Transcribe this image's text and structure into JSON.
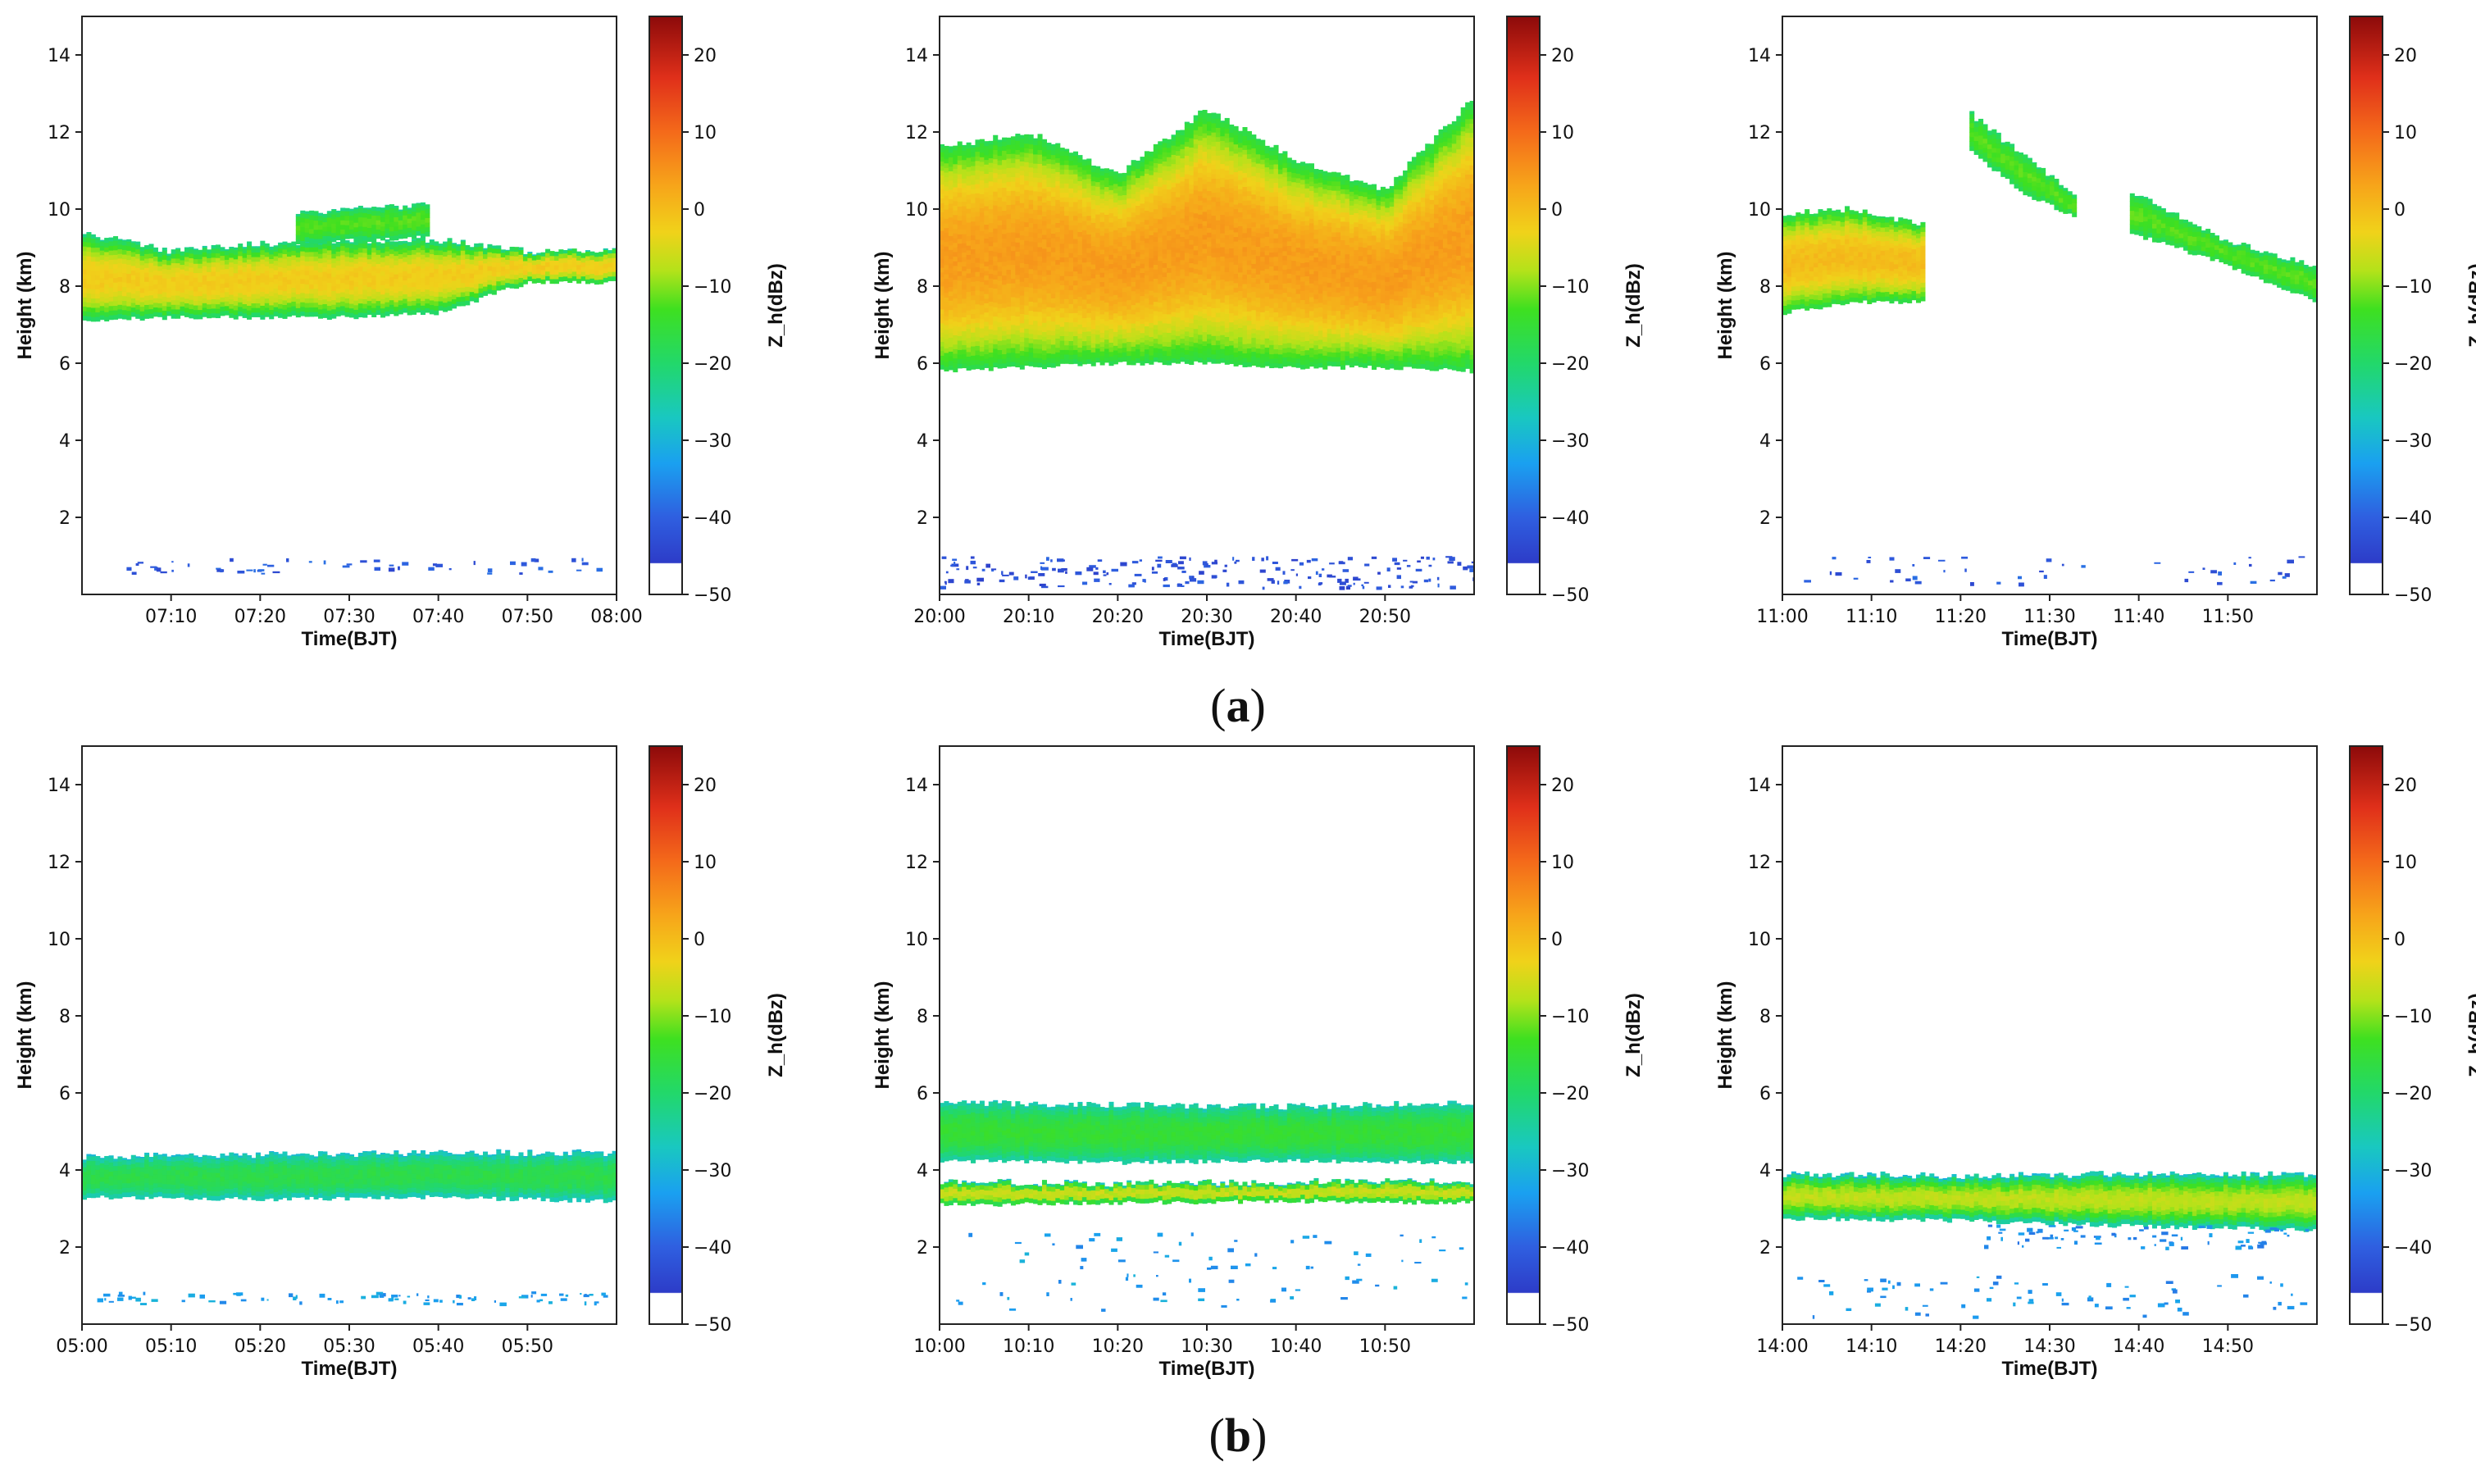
{
  "panel_labels": [
    "(a)",
    "(b)"
  ],
  "colorbar": {
    "label": "Z_h(dBz)",
    "range": [
      -50,
      25
    ],
    "ticks": [
      20,
      10,
      0,
      -10,
      -20,
      -30,
      -40,
      -50
    ],
    "stops": [
      {
        "v": -50,
        "c": "#ffffff"
      },
      {
        "v": -46,
        "c": "#ffffff"
      },
      {
        "v": -45.9,
        "c": "#2d3cc8"
      },
      {
        "v": -40,
        "c": "#2f5fe0"
      },
      {
        "v": -33,
        "c": "#1aa0f0"
      },
      {
        "v": -27,
        "c": "#19c8c0"
      },
      {
        "v": -20,
        "c": "#22d86a"
      },
      {
        "v": -13,
        "c": "#3ee020"
      },
      {
        "v": -8,
        "c": "#b4e21a"
      },
      {
        "v": -3,
        "c": "#f0d21a"
      },
      {
        "v": 3,
        "c": "#f7a51a"
      },
      {
        "v": 10,
        "c": "#f46a1a"
      },
      {
        "v": 17,
        "c": "#e0301a"
      },
      {
        "v": 25,
        "c": "#8c0a0a"
      }
    ]
  },
  "chart_data": [
    {
      "type": "heatmap",
      "panel": "a",
      "row": 0,
      "col": 0,
      "xlabel": "Time(BJT)",
      "ylabel": "Height (km)",
      "cbar_label": "Z_h(dBz)",
      "xlim": [
        0,
        60
      ],
      "ylim": [
        0,
        15
      ],
      "xticks": [
        10,
        20,
        30,
        40,
        50,
        60
      ],
      "xtick_labels": [
        "07:10",
        "07:20",
        "07:30",
        "07:40",
        "07:50",
        "08:00"
      ],
      "yticks": [
        2,
        4,
        6,
        8,
        10,
        12,
        14
      ],
      "layers": [
        {
          "x0": 0,
          "x1": 60,
          "bottom": [
            7.1,
            7.2,
            7.2,
            7.2,
            7.3,
            8.1,
            8.1
          ],
          "top": [
            9.4,
            8.9,
            9.1,
            9.2,
            9.2,
            8.9,
            8.9
          ],
          "peak": -2,
          "edge": -22
        },
        {
          "x0": 24,
          "x1": 39,
          "bottom": [
            9.1,
            9.3
          ],
          "top": [
            9.9,
            10.1
          ],
          "peak": -12,
          "edge": -22
        }
      ],
      "speckle": [
        {
          "x0": 1,
          "x1": 58,
          "y0": 0.55,
          "y1": 0.95,
          "count": 55,
          "dbz": -41
        }
      ]
    },
    {
      "type": "heatmap",
      "panel": "a",
      "row": 0,
      "col": 1,
      "xlabel": "Time(BJT)",
      "ylabel": "Height (km)",
      "cbar_label": "Z_h(dBz)",
      "xlim": [
        0,
        60
      ],
      "ylim": [
        0,
        15
      ],
      "xticks": [
        0,
        10,
        20,
        30,
        40,
        50
      ],
      "xtick_labels": [
        "20:00",
        "20:10",
        "20:20",
        "20:30",
        "20:40",
        "20:50"
      ],
      "yticks": [
        2,
        4,
        6,
        8,
        10,
        12,
        14
      ],
      "layers": [
        {
          "x0": 0,
          "x1": 60,
          "bottom": [
            5.8,
            5.9,
            6.0,
            6.0,
            5.9,
            5.9,
            5.8
          ],
          "top": [
            11.6,
            12.0,
            10.9,
            12.6,
            11.3,
            10.5,
            12.9
          ],
          "peak": 4,
          "edge": -18
        }
      ],
      "speckle": [
        {
          "x0": 0,
          "x1": 60,
          "y0": 0.2,
          "y1": 1.0,
          "count": 190,
          "dbz": -42
        }
      ]
    },
    {
      "type": "heatmap",
      "panel": "a",
      "row": 0,
      "col": 2,
      "xlabel": "Time(BJT)",
      "ylabel": "Height (km)",
      "cbar_label": "Z_h(dBz)",
      "xlim": [
        0,
        60
      ],
      "ylim": [
        0,
        15
      ],
      "xticks": [
        0,
        10,
        20,
        30,
        40,
        50
      ],
      "xtick_labels": [
        "11:00",
        "11:10",
        "11:20",
        "11:30",
        "11:40",
        "11:50"
      ],
      "yticks": [
        2,
        4,
        6,
        8,
        10,
        12,
        14
      ],
      "layers": [
        {
          "x0": 0,
          "x1": 16,
          "bottom": [
            7.3,
            7.6,
            7.6
          ],
          "top": [
            9.9,
            10.0,
            9.6
          ],
          "peak": 0,
          "edge": -18
        },
        {
          "x0": 21,
          "x1": 33,
          "bottom": [
            11.6,
            10.4,
            9.8
          ],
          "top": [
            12.5,
            11.4,
            10.3
          ],
          "peak": -12,
          "edge": -20
        },
        {
          "x0": 39,
          "x1": 60,
          "bottom": [
            9.4,
            8.6,
            7.6
          ],
          "top": [
            10.5,
            9.2,
            8.5
          ],
          "peak": -12,
          "edge": -20
        }
      ],
      "speckle": [
        {
          "x0": 1,
          "x1": 58,
          "y0": 0.2,
          "y1": 1.0,
          "count": 45,
          "dbz": -41
        }
      ]
    },
    {
      "type": "heatmap",
      "panel": "b",
      "row": 1,
      "col": 0,
      "xlabel": "Time(BJT)",
      "ylabel": "Height (km)",
      "cbar_label": "Z_h(dBz)",
      "xlim": [
        0,
        60
      ],
      "ylim": [
        0,
        15
      ],
      "xticks": [
        0,
        10,
        20,
        30,
        40,
        50
      ],
      "xtick_labels": [
        "05:00",
        "05:10",
        "05:20",
        "05:30",
        "05:40",
        "05:50"
      ],
      "yticks": [
        2,
        4,
        6,
        8,
        10,
        12,
        14
      ],
      "layers": [
        {
          "x0": 0,
          "x1": 60,
          "bottom": [
            3.3,
            3.25,
            3.3,
            3.2
          ],
          "top": [
            4.35,
            4.4,
            4.45,
            4.45
          ],
          "peak": -17,
          "edge": -28
        }
      ],
      "speckle": [
        {
          "x0": 1,
          "x1": 59,
          "y0": 0.55,
          "y1": 0.85,
          "count": 80,
          "dbz": -33
        }
      ]
    },
    {
      "type": "heatmap",
      "panel": "b",
      "row": 1,
      "col": 1,
      "xlabel": "Time(BJT)",
      "ylabel": "Height (km)",
      "cbar_label": "Z_h(dBz)",
      "xlim": [
        0,
        60
      ],
      "ylim": [
        0,
        15
      ],
      "xticks": [
        0,
        10,
        20,
        30,
        40,
        50
      ],
      "xtick_labels": [
        "10:00",
        "10:10",
        "10:20",
        "10:30",
        "10:40",
        "10:50"
      ],
      "yticks": [
        2,
        4,
        6,
        8,
        10,
        12,
        14
      ],
      "layers": [
        {
          "x0": 0,
          "x1": 60,
          "bottom": [
            4.25,
            4.2,
            4.25,
            4.2
          ],
          "top": [
            5.75,
            5.7,
            5.65,
            5.75
          ],
          "peak": -15,
          "edge": -26
        },
        {
          "x0": 0,
          "x1": 60,
          "bottom": [
            3.1,
            3.15,
            3.2,
            3.15
          ],
          "top": [
            3.7,
            3.65,
            3.7,
            3.7
          ],
          "peak": -6,
          "edge": -24
        }
      ],
      "speckle": [
        {
          "x0": 1,
          "x1": 59,
          "y0": 0.4,
          "y1": 2.4,
          "count": 85,
          "dbz": -33
        }
      ]
    },
    {
      "type": "heatmap",
      "panel": "b",
      "row": 1,
      "col": 2,
      "xlabel": "Time(BJT)",
      "ylabel": "Height (km)",
      "cbar_label": "Z_h(dBz)",
      "xlim": [
        0,
        60
      ],
      "ylim": [
        0,
        15
      ],
      "xticks": [
        0,
        10,
        20,
        30,
        40,
        50
      ],
      "xtick_labels": [
        "14:00",
        "14:10",
        "14:20",
        "14:30",
        "14:40",
        "14:50"
      ],
      "yticks": [
        2,
        4,
        6,
        8,
        10,
        12,
        14
      ],
      "layers": [
        {
          "x0": 0,
          "x1": 60,
          "bottom": [
            2.75,
            2.7,
            2.55,
            2.45
          ],
          "top": [
            3.9,
            3.85,
            3.9,
            3.9
          ],
          "peak": -7,
          "edge": -28
        }
      ],
      "speckle": [
        {
          "x0": 22,
          "x1": 59,
          "y0": 2.0,
          "y1": 2.6,
          "count": 70,
          "dbz": -35
        },
        {
          "x0": 1,
          "x1": 59,
          "y0": 0.2,
          "y1": 1.3,
          "count": 70,
          "dbz": -34
        }
      ]
    }
  ]
}
